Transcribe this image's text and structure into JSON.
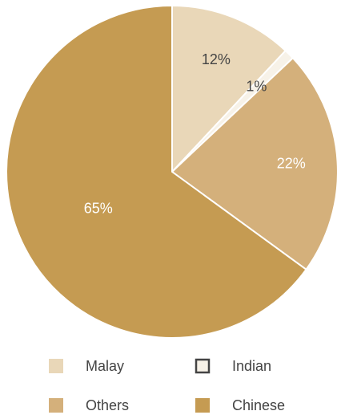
{
  "chart_data": {
    "type": "pie",
    "categories": [
      "Malay",
      "Indian",
      "Others",
      "Chinese"
    ],
    "values": [
      12,
      1,
      22,
      65
    ],
    "value_labels": [
      "12%",
      "1%",
      "22%",
      "65%"
    ],
    "colors": [
      "#e9d7b8",
      "#f7f2e8",
      "#d4b07b",
      "#c59b52"
    ]
  }
}
